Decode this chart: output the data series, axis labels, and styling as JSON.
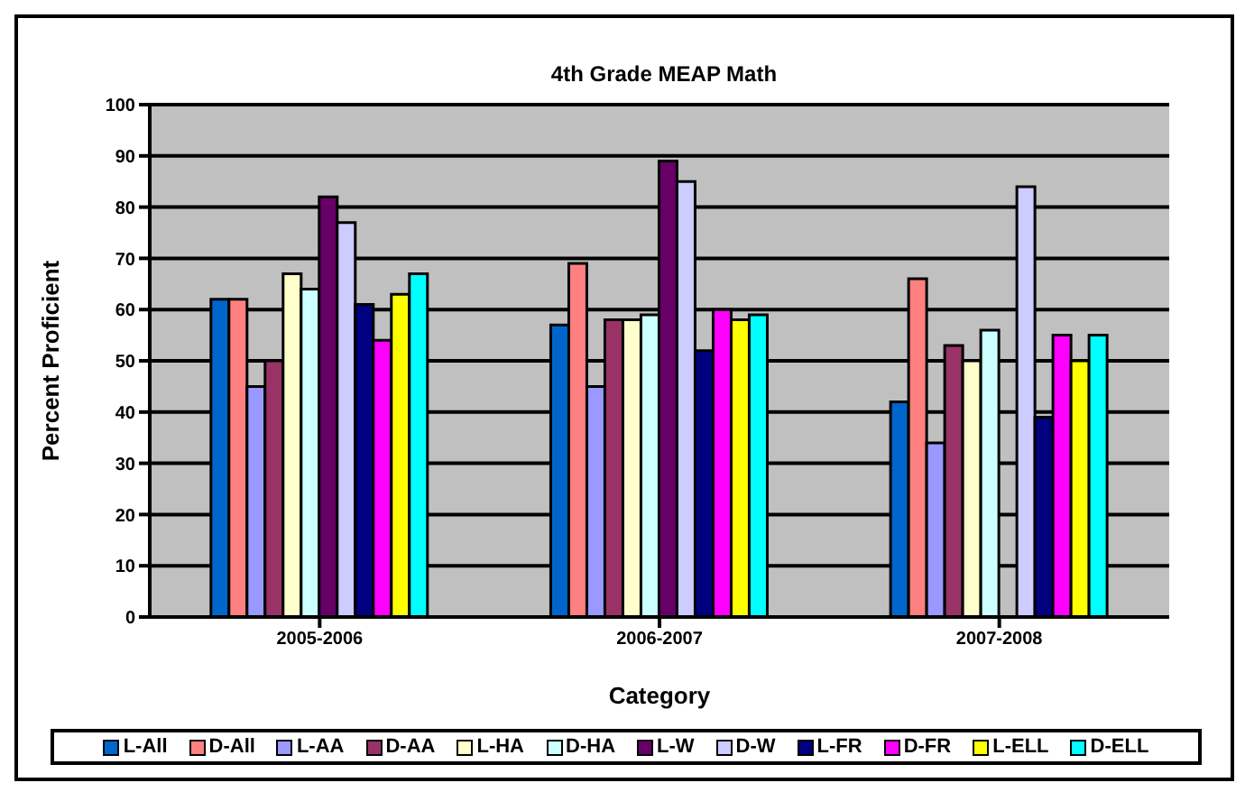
{
  "chart_data": {
    "type": "bar",
    "title": "4th Grade MEAP Math",
    "xlabel": "Category",
    "ylabel": "Percent Proficient",
    "categories": [
      "2005-2006",
      "2006-2007",
      "2007-2008"
    ],
    "series": [
      {
        "name": "L-All",
        "color": "#0066cc",
        "values": [
          62,
          57,
          42
        ]
      },
      {
        "name": "D-All",
        "color": "#ff8080",
        "values": [
          62,
          69,
          66
        ]
      },
      {
        "name": "L-AA",
        "color": "#9999ff",
        "values": [
          45,
          45,
          34
        ]
      },
      {
        "name": "D-AA",
        "color": "#993366",
        "values": [
          50,
          58,
          53
        ]
      },
      {
        "name": "L-HA",
        "color": "#ffffcc",
        "values": [
          67,
          58,
          50
        ]
      },
      {
        "name": "D-HA",
        "color": "#ccffff",
        "values": [
          64,
          59,
          56
        ]
      },
      {
        "name": "L-W",
        "color": "#660066",
        "values": [
          82,
          89,
          null
        ]
      },
      {
        "name": "D-W",
        "color": "#ccccff",
        "values": [
          77,
          85,
          84
        ]
      },
      {
        "name": "L-FR",
        "color": "#000080",
        "values": [
          61,
          52,
          39
        ]
      },
      {
        "name": "D-FR",
        "color": "#ff00ff",
        "values": [
          54,
          60,
          55
        ]
      },
      {
        "name": "L-ELL",
        "color": "#ffff00",
        "values": [
          63,
          58,
          50
        ]
      },
      {
        "name": "D-ELL",
        "color": "#00ffff",
        "values": [
          67,
          59,
          55
        ]
      }
    ],
    "ylim": [
      0,
      100
    ],
    "yticks": [
      0,
      10,
      20,
      30,
      40,
      50,
      60,
      70,
      80,
      90,
      100
    ],
    "grid": "y",
    "legend": "bottom"
  }
}
